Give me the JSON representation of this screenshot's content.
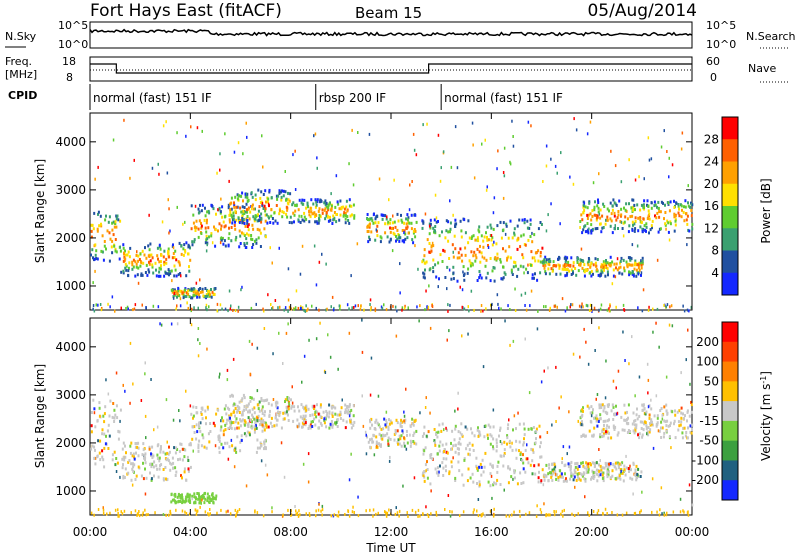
{
  "header": {
    "station": "Fort Hays East (fitACF)",
    "beam": "Beam 15",
    "date": "05/Aug/2014"
  },
  "noise_panel": {
    "left_label": "N.Sky",
    "right_label": "N.Search",
    "left_ticks": [
      "10^5",
      "10^0"
    ],
    "right_ticks": [
      "10^5",
      "10^0"
    ]
  },
  "freq_panel": {
    "left_label_1": "Freq.",
    "left_label_2": "[MHz]",
    "right_label": "Nave",
    "left_ticks": [
      "18",
      "8"
    ],
    "right_ticks": [
      "60",
      "0"
    ]
  },
  "cpid": {
    "label": "CPID",
    "segments": [
      {
        "name": "normal (fast) 151 IF",
        "start_h": 0,
        "end_h": 9
      },
      {
        "name": "rbsp 200 IF",
        "start_h": 9,
        "end_h": 14
      },
      {
        "name": "normal (fast) 151 IF",
        "start_h": 14,
        "end_h": 24
      }
    ]
  },
  "x_axis": {
    "label": "Time UT",
    "ticks": [
      "00:00",
      "04:00",
      "08:00",
      "12:00",
      "16:00",
      "20:00",
      "00:00"
    ]
  },
  "chart_data": [
    {
      "type": "heatmap",
      "quantity": "Power",
      "xlabel": "Time UT",
      "ylabel": "Slant Range [km]",
      "colorbar_label": "Power [dB]",
      "xlim_hours": [
        0,
        24
      ],
      "ylim": [
        500,
        4600
      ],
      "y_ticks": [
        1000,
        2000,
        3000,
        4000
      ],
      "colorbar_ticks": [
        "4",
        "8",
        "12",
        "16",
        "20",
        "24",
        "28"
      ],
      "colors": [
        "#1428ff",
        "#2050a0",
        "#3aa070",
        "#5fcc30",
        "#ffe000",
        "#ffa000",
        "#ff6000",
        "#ff0000"
      ],
      "bands": [
        {
          "t0": 0.0,
          "t1": 1.2,
          "r0": 1500,
          "r1": 2600
        },
        {
          "t0": 1.2,
          "t1": 4.0,
          "r0": 1200,
          "r1": 1900
        },
        {
          "t0": 4.0,
          "t1": 7.0,
          "r0": 1800,
          "r1": 2700
        },
        {
          "t0": 3.2,
          "t1": 5.0,
          "r0": 750,
          "r1": 950
        },
        {
          "t0": 5.5,
          "t1": 8.0,
          "r0": 2300,
          "r1": 3000
        },
        {
          "t0": 8.0,
          "t1": 10.5,
          "r0": 2300,
          "r1": 2800
        },
        {
          "t0": 11.0,
          "t1": 13.0,
          "r0": 1900,
          "r1": 2500
        },
        {
          "t0": 13.2,
          "t1": 18.0,
          "r0": 1100,
          "r1": 2400
        },
        {
          "t0": 18.0,
          "t1": 22.0,
          "r0": 1200,
          "r1": 1600
        },
        {
          "t0": 19.5,
          "t1": 24.0,
          "r0": 2100,
          "r1": 2800
        }
      ]
    },
    {
      "type": "heatmap",
      "quantity": "Velocity",
      "xlabel": "Time UT",
      "ylabel": "Slant Range [km]",
      "colorbar_label": "Velocity [m s^-1]",
      "xlim_hours": [
        0,
        24
      ],
      "ylim": [
        500,
        4600
      ],
      "y_ticks": [
        1000,
        2000,
        3000,
        4000
      ],
      "colorbar_ticks": [
        "200",
        "100",
        "50",
        "15",
        "-15",
        "-50",
        "-100",
        "-200"
      ],
      "colors": [
        "#1428ff",
        "#206080",
        "#3ca040",
        "#78d040",
        "#c8c8c8",
        "#ffc000",
        "#ff8000",
        "#ff4000",
        "#ff0000"
      ],
      "bands": [
        {
          "t0": 0.0,
          "t1": 1.2,
          "r0": 1500,
          "r1": 2900
        },
        {
          "t0": 1.2,
          "t1": 4.0,
          "r0": 1200,
          "r1": 2000
        },
        {
          "t0": 4.0,
          "t1": 7.0,
          "r0": 1800,
          "r1": 2800
        },
        {
          "t0": 3.2,
          "t1": 5.0,
          "r0": 750,
          "r1": 950
        },
        {
          "t0": 5.5,
          "t1": 8.0,
          "r0": 2300,
          "r1": 3000
        },
        {
          "t0": 8.0,
          "t1": 10.5,
          "r0": 2300,
          "r1": 2800
        },
        {
          "t0": 11.0,
          "t1": 13.0,
          "r0": 1900,
          "r1": 2500
        },
        {
          "t0": 13.2,
          "t1": 18.0,
          "r0": 1100,
          "r1": 2400
        },
        {
          "t0": 18.0,
          "t1": 22.0,
          "r0": 1200,
          "r1": 1600
        },
        {
          "t0": 19.5,
          "t1": 24.0,
          "r0": 2100,
          "r1": 2800
        }
      ]
    }
  ]
}
